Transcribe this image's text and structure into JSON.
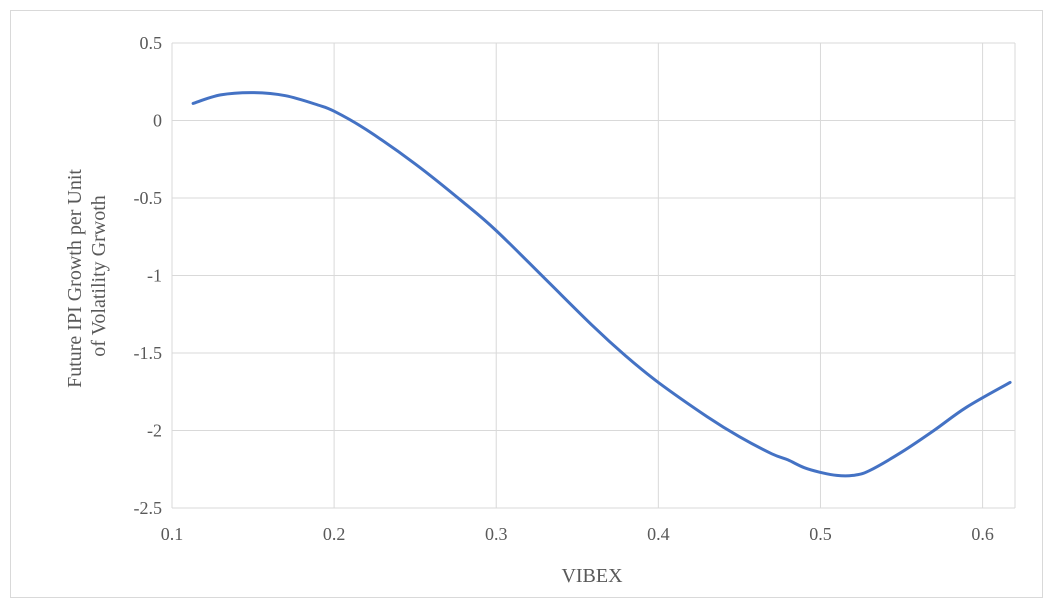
{
  "chart_data": {
    "type": "line",
    "title": "",
    "xlabel": "VIBEX",
    "ylabel_lines": [
      "Future IPI Growth per Unit",
      "of Volatility Grwoth"
    ],
    "xlim": [
      0.1,
      0.62
    ],
    "ylim": [
      -2.5,
      0.5
    ],
    "xticks": [
      "0.1",
      "0.2",
      "0.3",
      "0.4",
      "0.5",
      "0.6"
    ],
    "yticks": [
      "0.5",
      "0",
      "-0.5",
      "-1",
      "-1.5",
      "-2",
      "-2.5"
    ],
    "grid": true,
    "legend": "none",
    "series": [
      {
        "color": "#4472c4",
        "x": [
          0.113,
          0.13,
          0.15,
          0.17,
          0.19,
          0.2,
          0.22,
          0.25,
          0.28,
          0.3,
          0.33,
          0.36,
          0.38,
          0.4,
          0.43,
          0.45,
          0.47,
          0.48,
          0.49,
          0.5,
          0.51,
          0.52,
          0.53,
          0.55,
          0.57,
          0.59,
          0.617
        ],
        "y": [
          0.11,
          0.165,
          0.18,
          0.16,
          0.1,
          0.06,
          -0.06,
          -0.28,
          -0.53,
          -0.71,
          -1.02,
          -1.33,
          -1.52,
          -1.69,
          -1.91,
          -2.04,
          -2.15,
          -2.19,
          -2.24,
          -2.27,
          -2.29,
          -2.29,
          -2.26,
          -2.14,
          -2.0,
          -1.85,
          -1.69
        ]
      }
    ]
  }
}
